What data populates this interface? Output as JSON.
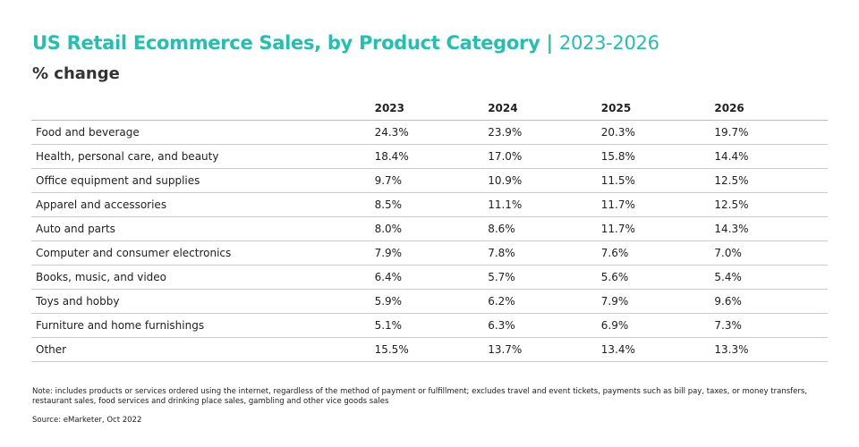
{
  "header": {
    "title": "US Retail Ecommerce Sales, by Product Category |",
    "title_years": "2023-2026",
    "subtitle": "% change"
  },
  "table": {
    "columns": [
      "2023",
      "2024",
      "2025",
      "2026"
    ],
    "rows": [
      [
        "Food and beverage",
        "24.3%",
        "23.9%",
        "20.3%",
        "19.7%"
      ],
      [
        "Health, personal care, and beauty",
        "18.4%",
        "17.0%",
        "15.8%",
        "14.4%"
      ],
      [
        "Office equipment and supplies",
        "9.7%",
        "10.9%",
        "11.5%",
        "12.5%"
      ],
      [
        "Apparel and accessories",
        "8.5%",
        "11.1%",
        "11.7%",
        "12.5%"
      ],
      [
        "Auto and parts",
        "8.0%",
        "8.6%",
        "11.7%",
        "14.3%"
      ],
      [
        "Computer and consumer electronics",
        "7.9%",
        "7.8%",
        "7.6%",
        "7.0%"
      ],
      [
        "Books, music, and video",
        "6.4%",
        "5.7%",
        "5.6%",
        "5.4%"
      ],
      [
        "Toys and hobby",
        "5.9%",
        "6.2%",
        "7.9%",
        "9.6%"
      ],
      [
        "Furniture and home furnishings",
        "5.1%",
        "6.3%",
        "6.9%",
        "7.3%"
      ],
      [
        "Other",
        "15.5%",
        "13.7%",
        "13.4%",
        "13.3%"
      ]
    ]
  },
  "footer": {
    "note": "Note: includes products or services ordered using the internet, regardless of the method of payment or fulfillment; excludes travel and event tickets, payments such as bill pay, taxes, or money transfers, restaurant sales, food services and drinking place sales, gambling and other vice goods sales",
    "source": "Source: eMarketer, Oct 2022"
  }
}
